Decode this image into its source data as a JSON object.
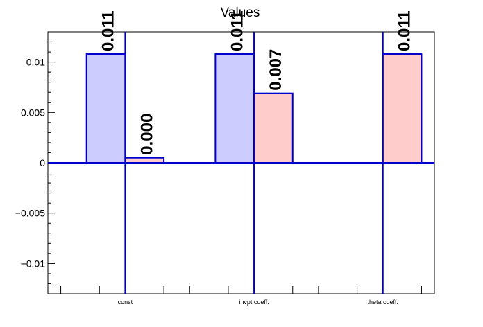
{
  "chart_data": {
    "type": "bar",
    "title": "Values",
    "xlabel": "",
    "ylabel": "",
    "categories": [
      "const",
      "invpt coeff.",
      "theta coeff."
    ],
    "ylim": [
      -0.013,
      0.013
    ],
    "yticks": [
      -0.01,
      -0.005,
      0,
      0.005,
      0.01
    ],
    "ytick_labels": [
      "−0.01",
      "−0.005",
      "0",
      "0.005",
      "0.01"
    ],
    "grid": false,
    "legend": "none",
    "series": [
      {
        "values": [
          0.0108,
          0.0108,
          null
        ],
        "labels": [
          "0.011",
          "0.011",
          ""
        ],
        "color": "#ccccff"
      },
      {
        "values": [
          0.0005,
          0.0069,
          0.0108
        ],
        "labels": [
          "0.000",
          "0.007",
          "0.011"
        ],
        "color": "#ffcccc"
      }
    ],
    "colors": {
      "edge": "#0000cc",
      "axis": "#000000",
      "marker": "#0000cc"
    }
  }
}
